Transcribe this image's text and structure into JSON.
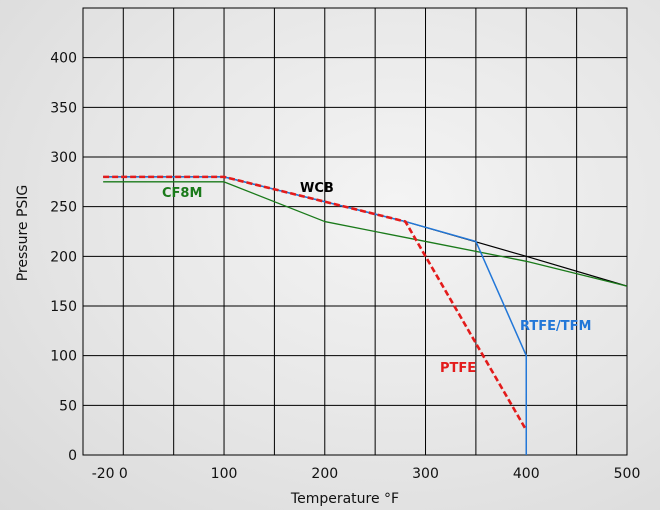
{
  "chart_data": {
    "type": "line",
    "title": "",
    "xlabel": "Temperature °F",
    "ylabel": "Pressure PSIG",
    "xlim": [
      -40,
      500
    ],
    "ylim": [
      0,
      450
    ],
    "x_ticks": [
      -20,
      0,
      100,
      200,
      300,
      400,
      500
    ],
    "x_tick_labels": [
      "-20",
      "0",
      "100",
      "200",
      "300",
      "400",
      "500"
    ],
    "y_ticks": [
      0,
      50,
      100,
      150,
      200,
      250,
      300,
      350,
      400
    ],
    "y_tick_labels": [
      "0",
      "50",
      "100",
      "150",
      "200",
      "250",
      "300",
      "350",
      "400"
    ],
    "grid": true,
    "series": [
      {
        "name": "WCB",
        "color": "#000000",
        "x": [
          -20,
          100,
          280,
          400,
          500
        ],
        "y": [
          280,
          280,
          235,
          200,
          170
        ]
      },
      {
        "name": "CF8M",
        "color": "#1a7a1a",
        "x": [
          -20,
          100,
          200,
          300,
          400,
          500
        ],
        "y": [
          275,
          275,
          235,
          215,
          195,
          170
        ]
      },
      {
        "name": "PTFE",
        "color": "#e31b1b",
        "x": [
          -20,
          100,
          280,
          400
        ],
        "y": [
          280,
          280,
          235,
          25
        ]
      },
      {
        "name": "RTFE/TFM",
        "color": "#2277d8",
        "x": [
          -20,
          100,
          280,
          350,
          400,
          400
        ],
        "y": [
          280,
          280,
          235,
          215,
          100,
          0
        ]
      }
    ]
  }
}
